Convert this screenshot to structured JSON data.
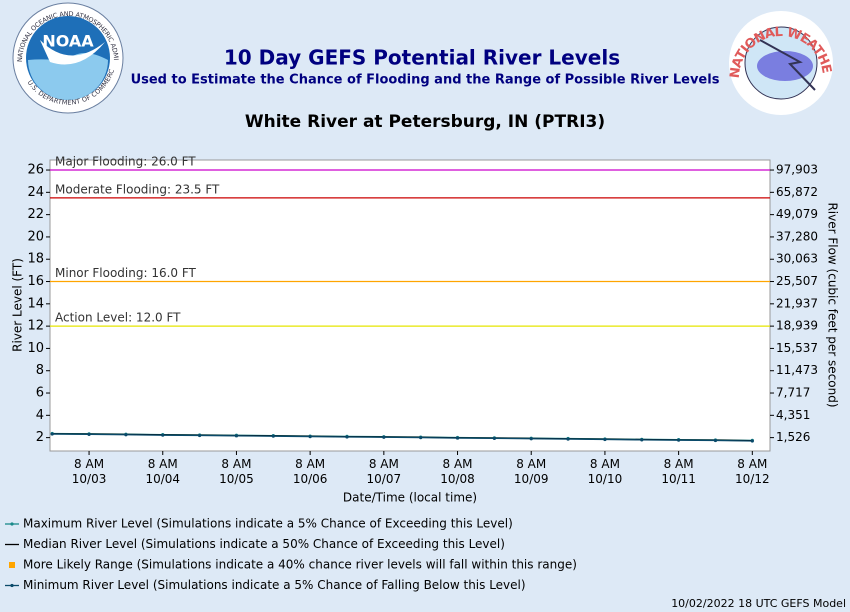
{
  "chart_data": {
    "type": "line",
    "title": "10 Day GEFS Potential River Levels",
    "subtitle": "Used to Estimate the Chance of Flooding and the Range of Possible River Levels",
    "location": "White River at Petersburg, IN (PTRI3)",
    "footer": "10/02/2022 18 UTC GEFS Model",
    "logos": {
      "noaa": "NOAA",
      "noaa_ring": "NATIONAL OCEANIC AND ATMOSPHERIC ADMINISTRATION",
      "noaa_ring_bottom": "U.S. DEPARTMENT OF COMMERCE",
      "nws": "NATIONAL WEATHER SERVICE"
    },
    "ylabel": "River Level (FT)",
    "y2label": "River Flow (cubic feet per second)",
    "xlabel": "Date/Time (local time)",
    "ylim": [
      0.8,
      26.9
    ],
    "yticks": [
      2,
      4,
      6,
      8,
      10,
      12,
      14,
      16,
      18,
      20,
      22,
      24,
      26
    ],
    "y2ticks": [
      {
        "value": 1526,
        "label": "1,526"
      },
      {
        "value": 4351,
        "label": "4,351"
      },
      {
        "value": 7717,
        "label": "7,717"
      },
      {
        "value": 11473,
        "label": "11,473"
      },
      {
        "value": 15537,
        "label": "15,537"
      },
      {
        "value": 18939,
        "label": "18,939"
      },
      {
        "value": 21937,
        "label": "21,937"
      },
      {
        "value": 25507,
        "label": "25,507"
      },
      {
        "value": 30063,
        "label": "30,063"
      },
      {
        "value": 37280,
        "label": "37,280"
      },
      {
        "value": 49079,
        "label": "49,079"
      },
      {
        "value": 65872,
        "label": "65,872"
      },
      {
        "value": 97903,
        "label": "97,903"
      }
    ],
    "xlim": [
      -0.53,
      9.24
    ],
    "xticks": [
      {
        "value": 0,
        "label": "8 AM\n10/03"
      },
      {
        "value": 1,
        "label": "8 AM\n10/04"
      },
      {
        "value": 2,
        "label": "8 AM\n10/05"
      },
      {
        "value": 3,
        "label": "8 AM\n10/06"
      },
      {
        "value": 4,
        "label": "8 AM\n10/07"
      },
      {
        "value": 5,
        "label": "8 AM\n10/08"
      },
      {
        "value": 6,
        "label": "8 AM\n10/09"
      },
      {
        "value": 7,
        "label": "8 AM\n10/10"
      },
      {
        "value": 8,
        "label": "8 AM\n10/11"
      },
      {
        "value": 9,
        "label": "8 AM\n10/12"
      }
    ],
    "thresholds": [
      {
        "label": "Major Flooding: 26.0 FT",
        "value": 26,
        "color": "#cc00cc"
      },
      {
        "label": "Moderate Flooding: 23.5 FT",
        "value": 23.5,
        "color": "#cc0000"
      },
      {
        "label": "Minor Flooding: 16.0 FT",
        "value": 16,
        "color": "#ffa500"
      },
      {
        "label": "Action Level: 12.0 FT",
        "value": 12,
        "color": "#e6e600"
      }
    ],
    "x": [
      -0.5,
      0,
      0.5,
      1,
      1.5,
      2,
      2.5,
      3,
      3.5,
      4,
      4.5,
      5,
      5.5,
      6,
      6.5,
      7,
      7.5,
      8,
      8.5,
      9
    ],
    "series": [
      {
        "name": "Maximum River Level (Simulations indicate a 5% Chance of Exceeding this Level)",
        "color": "#1a8a8a",
        "marker": true,
        "values": [
          2.37,
          2.34,
          2.31,
          2.27,
          2.24,
          2.21,
          2.18,
          2.14,
          2.11,
          2.08,
          2.05,
          2.01,
          1.98,
          1.95,
          1.92,
          1.88,
          1.85,
          1.82,
          1.79,
          1.75
        ]
      },
      {
        "name": "Median River Level (Simulations indicate a 50% Chance of Exceeding this Level)",
        "color": "#000000",
        "marker": false,
        "values": [
          2.35,
          2.32,
          2.29,
          2.25,
          2.22,
          2.19,
          2.16,
          2.12,
          2.09,
          2.06,
          2.03,
          1.99,
          1.96,
          1.93,
          1.9,
          1.86,
          1.83,
          1.8,
          1.77,
          1.73
        ]
      },
      {
        "name": "Minimum River Level (Simulations indicate a 5% Chance of Falling Below this Level)",
        "color": "#0a4a6a",
        "marker": true,
        "values": [
          2.32,
          2.29,
          2.26,
          2.22,
          2.19,
          2.16,
          2.13,
          2.09,
          2.06,
          2.03,
          2.0,
          1.96,
          1.93,
          1.9,
          1.87,
          1.83,
          1.8,
          1.77,
          1.74,
          1.7
        ]
      }
    ],
    "range_legend": {
      "name": "More Likely Range (Simulations indicate a 40% chance river levels will fall within this range)",
      "color": "#ffa500"
    }
  }
}
